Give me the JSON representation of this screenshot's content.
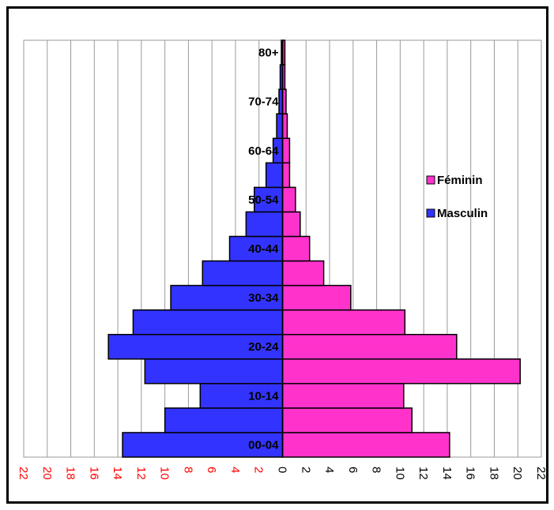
{
  "chart_data": {
    "type": "bar",
    "orientation": "horizontal",
    "categories": [
      "00-04",
      "05-09",
      "10-14",
      "15-19",
      "20-24",
      "25-29",
      "30-34",
      "35-39",
      "40-44",
      "45-49",
      "50-54",
      "55-59",
      "60-64",
      "65-69",
      "70-74",
      "75-79",
      "80+"
    ],
    "shown_category_labels": [
      "00-04",
      "10-14",
      "20-24",
      "30-34",
      "40-44",
      "50-54",
      "60-64",
      "70-74",
      "80+"
    ],
    "series": [
      {
        "name": "Féminin",
        "color": "#ff33cc",
        "side": "right",
        "values": [
          14.2,
          11.0,
          10.3,
          20.2,
          14.8,
          10.4,
          5.8,
          3.5,
          2.3,
          1.5,
          1.1,
          0.6,
          0.6,
          0.4,
          0.3,
          0.2,
          0.2
        ]
      },
      {
        "name": "Masculin",
        "color": "#3333ff",
        "side": "left",
        "values": [
          13.6,
          10.0,
          7.0,
          11.7,
          14.8,
          12.7,
          9.5,
          6.8,
          4.5,
          3.1,
          2.4,
          1.4,
          0.8,
          0.5,
          0.3,
          0.2,
          0.1
        ]
      }
    ],
    "xlim": [
      -22,
      22
    ],
    "x_ticks": [
      22,
      20,
      18,
      16,
      14,
      12,
      10,
      8,
      6,
      4,
      2,
      0,
      2,
      4,
      6,
      8,
      10,
      12,
      14,
      16,
      18,
      20,
      22
    ],
    "grid": "vertical",
    "legend_position": "right",
    "tick_label_colors": {
      "left": "#ff0000",
      "right": "#000000"
    },
    "title": "",
    "xlabel": "",
    "ylabel": ""
  }
}
